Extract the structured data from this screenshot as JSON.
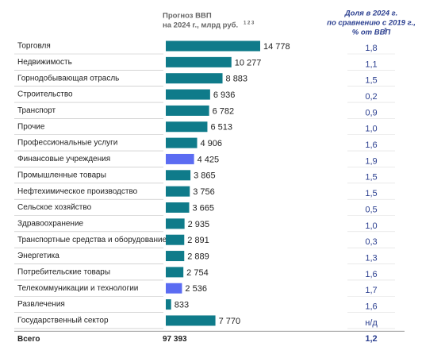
{
  "chart_data": {
    "type": "bar",
    "orientation": "horizontal",
    "header": {
      "value_lines": [
        "Прогноз ВВП",
        "на 2024 г., млрд руб."
      ],
      "value_sup": "1 2 3",
      "share_lines": [
        "Доля в 2024 г.",
        "по сравнению с 2019 г.,",
        "% от ВВП"
      ],
      "share_sup": "2"
    },
    "categories": [
      "Торговля",
      "Недвижимость",
      "Горнодобывающая отрасль",
      "Строительство",
      "Транспорт",
      "Прочие",
      "Профессиональные услуги",
      "Финансовые учреждения",
      "Промышленные товары",
      "Нефтехимическое производство",
      "Сельское хозяйство",
      "Здравоохранение",
      "Транспортные средства и оборудование",
      "Энергетика",
      "Потребительские товары",
      "Телекоммуникации и технологии",
      "Развлечения",
      "Государственный сектор"
    ],
    "values": [
      14778,
      10277,
      8883,
      6936,
      6782,
      6513,
      4906,
      4425,
      3865,
      3756,
      3665,
      2935,
      2891,
      2889,
      2754,
      2536,
      833,
      7770
    ],
    "value_labels": [
      "14 778",
      "10 277",
      "8 883",
      "6 936",
      "6 782",
      "6 513",
      "4 906",
      "4 425",
      "3 865",
      "3 756",
      "3 665",
      "2 935",
      "2 891",
      "2 889",
      "2 754",
      "2 536",
      "833",
      "7 770"
    ],
    "colors": [
      "#0f7b8a",
      "#0f7b8a",
      "#0f7b8a",
      "#0f7b8a",
      "#0f7b8a",
      "#0f7b8a",
      "#0f7b8a",
      "#5b6cf2",
      "#0f7b8a",
      "#0f7b8a",
      "#0f7b8a",
      "#0f7b8a",
      "#0f7b8a",
      "#0f7b8a",
      "#0f7b8a",
      "#5b6cf2",
      "#0f7b8a",
      "#0f7b8a"
    ],
    "shares": [
      1.8,
      1.1,
      1.5,
      0.2,
      0.9,
      1.0,
      1.6,
      1.9,
      1.5,
      1.5,
      0.5,
      1.0,
      0.3,
      1.3,
      1.6,
      1.7,
      1.6,
      null
    ],
    "share_labels": [
      "1,8",
      "1,1",
      "1,5",
      "0,2",
      "0,9",
      "1,0",
      "1,6",
      "1,9",
      "1,5",
      "1,5",
      "0,5",
      "1,0",
      "0,3",
      "1,3",
      "1,6",
      "1,7",
      "1,6",
      "н/д"
    ],
    "total": {
      "label": "Всего",
      "value": 97393,
      "value_label": "97 393",
      "share": 1.2,
      "share_label": "1,2"
    }
  }
}
